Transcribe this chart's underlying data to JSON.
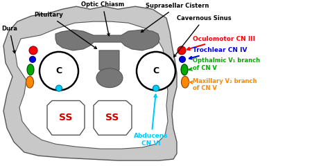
{
  "bg_color": "#ffffff",
  "labels": {
    "pituitary": "Pituitary",
    "optic_chiasm": "Optic Chiasm",
    "suprasellar": "Suprasellar Cistern",
    "dura": "Dura",
    "cavernous_sinus": "Cavernous Sinus",
    "CN3": "Oculomotor CN III",
    "CN4": "Trochlear CN IV",
    "CN5a": "Opthalmic V₁ branch\nof CN V",
    "CN5b": "Maxillary V₂ branch\nof CN V",
    "CN6": "Abducens\nCN VI",
    "C": "C",
    "SS": "SS"
  },
  "colors": {
    "CN3": "#ff0000",
    "CN4": "#0000dd",
    "CN5a": "#00aa00",
    "CN5b": "#ff8800",
    "CN6": "#00ccff",
    "SS_text": "#cc0000",
    "C_text": "#000000",
    "outer_fill": "#c8c8c8",
    "inner_fill": "#ffffff",
    "dark_struct": "#777777",
    "mid_struct": "#999999",
    "outline": "#555555",
    "arrow_black": "#000000"
  },
  "figsize": [
    4.5,
    2.4
  ],
  "dpi": 100
}
